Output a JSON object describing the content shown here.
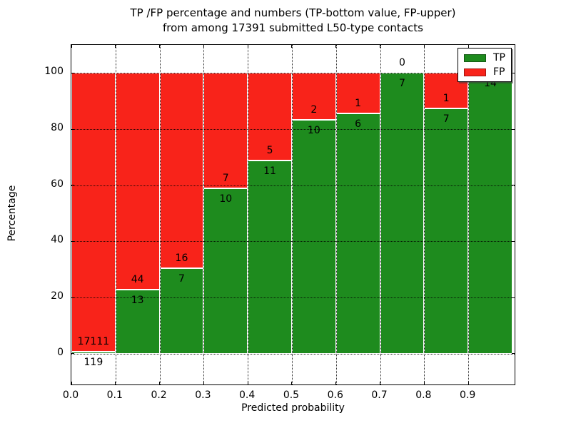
{
  "title": {
    "line1": "TP /FP percentage and numbers (TP-bottom value, FP-upper)",
    "line2": "from among 17391 submitted L50-type contacts"
  },
  "chart_data": {
    "type": "bar",
    "stacked": true,
    "normalized_to_percent": true,
    "title": "TP /FP percentage and numbers (TP-bottom value, FP-upper) from among 17391 submitted L50-type contacts",
    "xlabel": "Predicted probability",
    "ylabel": "Percentage",
    "total_submitted": 17391,
    "xlim": [
      0,
      1.005
    ],
    "ylim": [
      -11,
      110
    ],
    "x_ticks": [
      0.0,
      0.1,
      0.2,
      0.3,
      0.4,
      0.5,
      0.6,
      0.7,
      0.8,
      0.9
    ],
    "x_tick_labels": [
      "0.0",
      "0.1",
      "0.2",
      "0.3",
      "0.4",
      "0.5",
      "0.6",
      "0.7",
      "0.8",
      "0.9"
    ],
    "y_ticks": [
      0,
      20,
      40,
      60,
      80,
      100
    ],
    "y_tick_labels": [
      "0",
      "20",
      "40",
      "60",
      "80",
      "100"
    ],
    "grid": true,
    "legend_position": "upper right",
    "legend": [
      {
        "label": "TP",
        "color": "#1e8b1e"
      },
      {
        "label": "FP",
        "color": "#f8231a"
      }
    ],
    "colors": {
      "tp": "#1e8b1e",
      "fp": "#f8231a",
      "text": "#000000",
      "background": "#ffffff"
    },
    "bins": [
      {
        "range": [
          0.0,
          0.1
        ],
        "tp": 119,
        "fp": 17111
      },
      {
        "range": [
          0.1,
          0.2
        ],
        "tp": 13,
        "fp": 44
      },
      {
        "range": [
          0.2,
          0.3
        ],
        "tp": 7,
        "fp": 16
      },
      {
        "range": [
          0.3,
          0.4
        ],
        "tp": 10,
        "fp": 7
      },
      {
        "range": [
          0.4,
          0.5
        ],
        "tp": 11,
        "fp": 5
      },
      {
        "range": [
          0.5,
          0.6
        ],
        "tp": 10,
        "fp": 2
      },
      {
        "range": [
          0.6,
          0.7
        ],
        "tp": 6,
        "fp": 1
      },
      {
        "range": [
          0.7,
          0.8
        ],
        "tp": 7,
        "fp": 0
      },
      {
        "range": [
          0.8,
          0.9
        ],
        "tp": 7,
        "fp": 1
      },
      {
        "range": [
          0.9,
          1.0
        ],
        "tp": 14,
        "fp": 0
      }
    ]
  }
}
